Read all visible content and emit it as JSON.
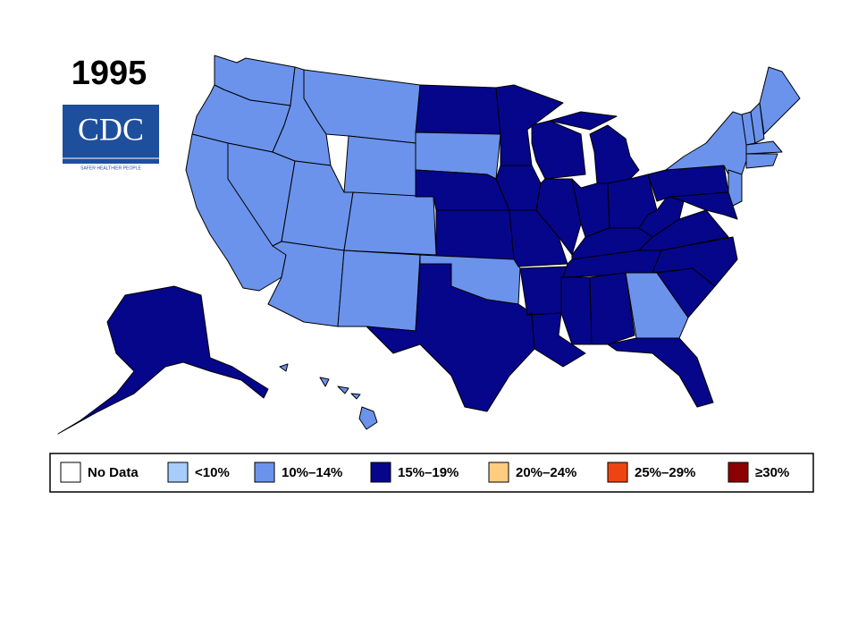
{
  "title": "1995",
  "logo": {
    "text": "CDC",
    "tagline": "SAFER·HEALTHIER·PEOPLE"
  },
  "legend": [
    {
      "label": "No Data",
      "color": "#ffffff"
    },
    {
      "label": "<10%",
      "color": "#a6cdfb"
    },
    {
      "label": "10%–14%",
      "color": "#6b93ec"
    },
    {
      "label": "15%–19%",
      "color": "#06068a"
    },
    {
      "label": "20%–24%",
      "color": "#ffcc80"
    },
    {
      "label": "25%–29%",
      "color": "#ee4411"
    },
    {
      "label": "≥30%",
      "color": "#8b0000"
    }
  ]
}
